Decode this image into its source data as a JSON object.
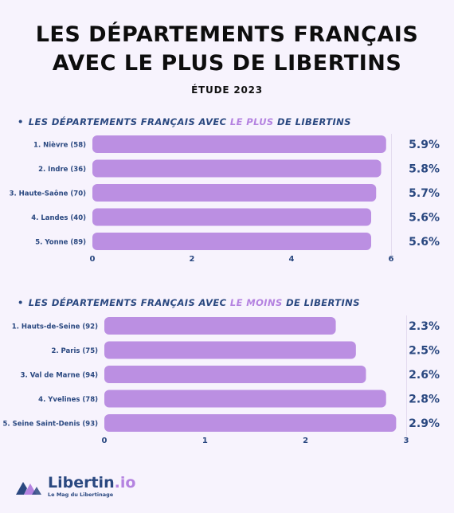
{
  "title": "LES DÉPARTEMENTS FRANÇAIS AVEC LE PLUS DE LIBERTINS",
  "subtitle": "ÉTUDE 2023",
  "colors": {
    "bar": "#bb8fe2",
    "accent": "#b482e0",
    "navy": "#2a4880",
    "background": "#f7f3fd"
  },
  "brand": {
    "name_main": "Libertin",
    "name_ext": ".io",
    "tagline": "Le Mag du Libertinage",
    "icon": "libertin-logo-icon"
  },
  "chart_data": [
    {
      "type": "bar",
      "orientation": "horizontal",
      "heading": {
        "prefix": "LES DÉPARTEMENTS FRANÇAIS AVEC",
        "highlight": "LE PLUS",
        "suffix": "DE LIBERTINS"
      },
      "categories": [
        "1. Nièvre (58)",
        "2. Indre (36)",
        "3. Haute-Saône (70)",
        "4. Landes (40)",
        "5. Yonne (89)"
      ],
      "values": [
        5.9,
        5.8,
        5.7,
        5.6,
        5.6
      ],
      "value_labels": [
        "5.9%",
        "5.8%",
        "5.7%",
        "5.6%",
        "5.6%"
      ],
      "xlim": [
        0,
        6
      ],
      "xticks": [
        0,
        2,
        4,
        6
      ],
      "grid": false
    },
    {
      "type": "bar",
      "orientation": "horizontal",
      "heading": {
        "prefix": "LES DÉPARTEMENTS FRANÇAIS AVEC",
        "highlight": "LE MOINS",
        "suffix": "DE LIBERTINS"
      },
      "categories": [
        "1. Hauts-de-Seine (92)",
        "2. Paris (75)",
        "3. Val de Marne (94)",
        "4. Yvelines (78)",
        "5. Seine Saint-Denis (93)"
      ],
      "values": [
        2.3,
        2.5,
        2.6,
        2.8,
        2.9
      ],
      "value_labels": [
        "2.3%",
        "2.5%",
        "2.6%",
        "2.8%",
        "2.9%"
      ],
      "xlim": [
        0,
        3
      ],
      "xticks": [
        0,
        1,
        2,
        3
      ],
      "grid": false
    }
  ]
}
